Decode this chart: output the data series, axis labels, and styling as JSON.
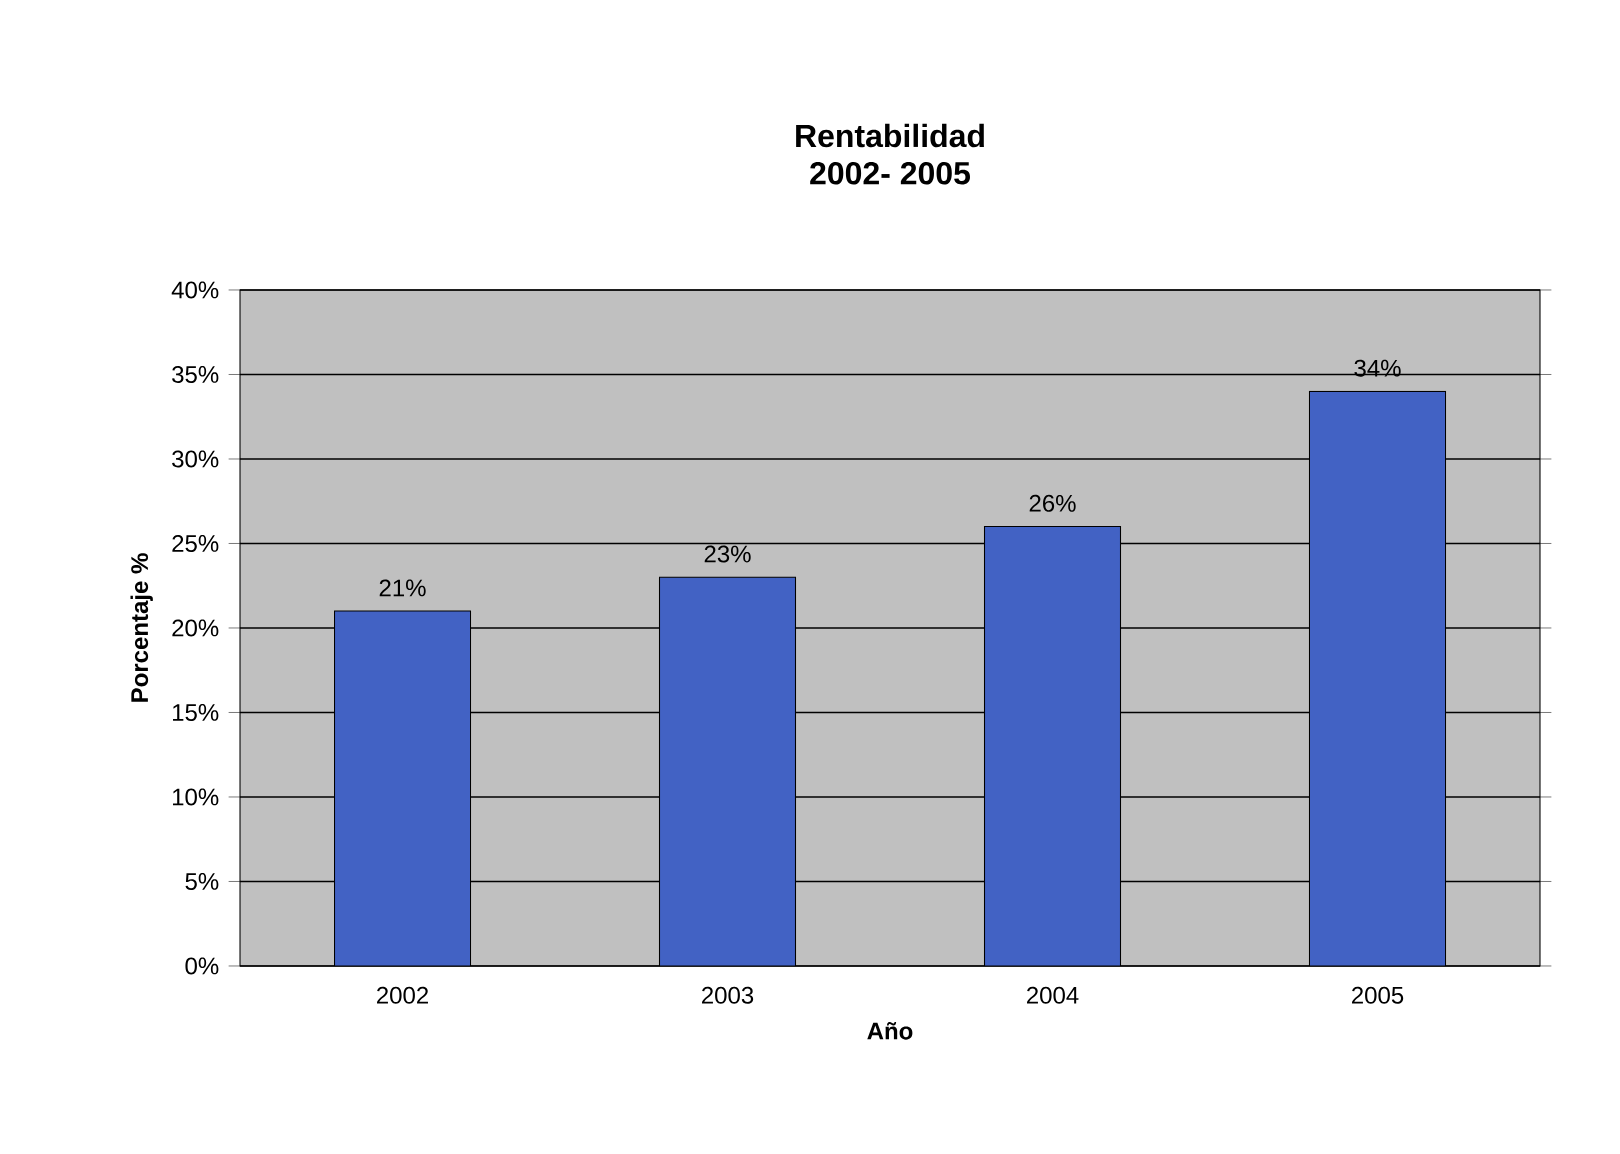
{
  "chart_data": {
    "type": "bar",
    "title": "Rentabilidad",
    "subtitle": "2002- 2005",
    "xlabel": "Año",
    "ylabel": "Porcentaje %",
    "categories": [
      "2002",
      "2003",
      "2004",
      "2005"
    ],
    "values": [
      21,
      23,
      26,
      34
    ],
    "value_labels": [
      "21%",
      "23%",
      "26%",
      "34%"
    ],
    "color": "#4262c4",
    "ylim": [
      0,
      40
    ],
    "yticks": [
      {
        "value": 0,
        "label": "0%"
      },
      {
        "value": 5,
        "label": "5%"
      },
      {
        "value": 10,
        "label": "10%"
      },
      {
        "value": 15,
        "label": "15%"
      },
      {
        "value": 20,
        "label": "20%"
      },
      {
        "value": 25,
        "label": "25%"
      },
      {
        "value": 30,
        "label": "30%"
      },
      {
        "value": 35,
        "label": "35%"
      },
      {
        "value": 40,
        "label": "40%"
      }
    ],
    "grid": "y"
  }
}
